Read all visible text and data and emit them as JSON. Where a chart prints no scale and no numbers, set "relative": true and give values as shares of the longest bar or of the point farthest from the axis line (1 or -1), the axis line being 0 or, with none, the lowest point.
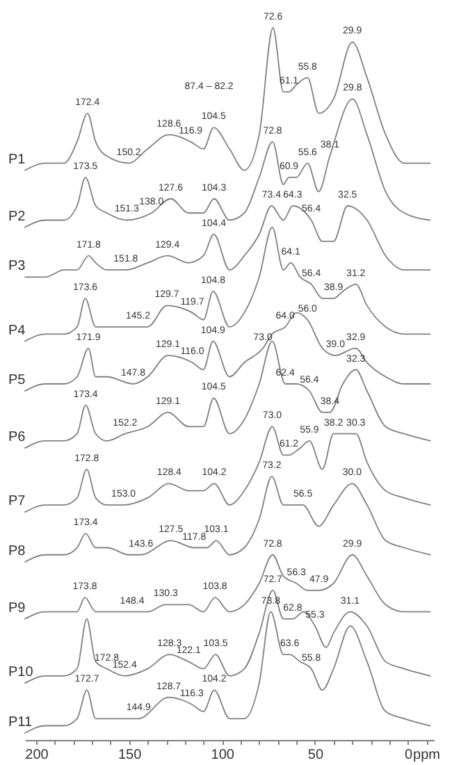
{
  "chart_data": {
    "type": "line",
    "relative": true,
    "xlabel": "ppm",
    "xlim": [
      206,
      -14
    ],
    "xticks": [
      200,
      {
        "value": 190,
        "label": null
      },
      {
        "value": 180,
        "label": null
      },
      {
        "value": 170,
        "label": null
      },
      {
        "value": 160,
        "label": null
      },
      150,
      {
        "value": 140,
        "label": null
      },
      {
        "value": 130,
        "label": null
      },
      {
        "value": 120,
        "label": null
      },
      {
        "value": 110,
        "label": null
      },
      100,
      {
        "value": 90,
        "label": null
      },
      {
        "value": 80,
        "label": null
      },
      {
        "value": 70,
        "label": null
      },
      {
        "value": 60,
        "label": null
      },
      50,
      {
        "value": 40,
        "label": null
      },
      {
        "value": 30,
        "label": null
      },
      {
        "value": 20,
        "label": null
      },
      {
        "value": 10,
        "label": null
      },
      0,
      {
        "value": -10,
        "label": null
      }
    ],
    "series": [
      {
        "name": "P1",
        "color": "#808080",
        "x": [
          206,
          195,
          185,
          178,
          172.4,
          168,
          162,
          150.2,
          140,
          128.6,
          116.9,
          110,
          104.5,
          96,
          88,
          80,
          72.6,
          67,
          64,
          60,
          54,
          48,
          40,
          29.9,
          22,
          12,
          2,
          -12
        ],
        "values": [
          0.8,
          0.81,
          0.81,
          0.84,
          0.88,
          0.84,
          0.82,
          0.81,
          0.83,
          0.85,
          0.84,
          0.83,
          0.86,
          0.83,
          0.8,
          0.85,
          1.0,
          0.91,
          0.91,
          0.92,
          0.93,
          0.88,
          0.9,
          0.98,
          0.93,
          0.85,
          0.81,
          0.81
        ]
      },
      {
        "name": "P2",
        "color": "#808080",
        "x": [
          206,
          195,
          185,
          178,
          173.5,
          168,
          162,
          151.3,
          138,
          127.6,
          118,
          110,
          104.3,
          96,
          88,
          80,
          72.8,
          67,
          64,
          60,
          54,
          48,
          42,
          29.8,
          22,
          12,
          2,
          -12
        ],
        "values": [
          0.72,
          0.73,
          0.73,
          0.75,
          0.79,
          0.75,
          0.74,
          0.73,
          0.74,
          0.76,
          0.74,
          0.74,
          0.76,
          0.73,
          0.74,
          0.79,
          0.84,
          0.78,
          0.79,
          0.79,
          0.81,
          0.77,
          0.82,
          0.9,
          0.85,
          0.77,
          0.74,
          0.73
        ]
      },
      {
        "name": "P3",
        "color": "#808080",
        "x": [
          206,
          195,
          185,
          178,
          171.8,
          168,
          162,
          151.8,
          140,
          129.4,
          118,
          110,
          104.4,
          96,
          88,
          80,
          73.4,
          67,
          62,
          52,
          46,
          40,
          32.5,
          22,
          12,
          2,
          -12
        ],
        "values": [
          0.65,
          0.65,
          0.66,
          0.66,
          0.68,
          0.67,
          0.66,
          0.66,
          0.67,
          0.68,
          0.67,
          0.68,
          0.71,
          0.66,
          0.68,
          0.71,
          0.75,
          0.73,
          0.75,
          0.73,
          0.7,
          0.7,
          0.75,
          0.73,
          0.68,
          0.66,
          0.66
        ]
      },
      {
        "name": "P4",
        "color": "#808080",
        "x": [
          206,
          195,
          185,
          178,
          173.6,
          168,
          162,
          145.2,
          140,
          129.7,
          116,
          110,
          104.8,
          96,
          88,
          80,
          73,
          67,
          63,
          58,
          52,
          46,
          40,
          35,
          28,
          22,
          12,
          2,
          -12
        ],
        "values": [
          0.56,
          0.57,
          0.57,
          0.58,
          0.62,
          0.58,
          0.58,
          0.58,
          0.58,
          0.61,
          0.6,
          0.59,
          0.63,
          0.58,
          0.6,
          0.65,
          0.72,
          0.66,
          0.67,
          0.65,
          0.64,
          0.62,
          0.62,
          0.63,
          0.64,
          0.61,
          0.58,
          0.57,
          0.57
        ]
      },
      {
        "name": "P5",
        "color": "#808080",
        "x": [
          206,
          195,
          185,
          178,
          171.9,
          168,
          162,
          147.8,
          140,
          129.1,
          116,
          110,
          104.9,
          96,
          88,
          78,
          73,
          66,
          60,
          54,
          46,
          39,
          28,
          22,
          12,
          2,
          -12
        ],
        "values": [
          0.49,
          0.5,
          0.5,
          0.51,
          0.55,
          0.51,
          0.51,
          0.5,
          0.51,
          0.54,
          0.53,
          0.52,
          0.56,
          0.51,
          0.53,
          0.55,
          0.57,
          0.58,
          0.6,
          0.59,
          0.55,
          0.54,
          0.55,
          0.53,
          0.51,
          0.5,
          0.5
        ]
      },
      {
        "name": "P6",
        "color": "#808080",
        "x": [
          206,
          195,
          185,
          178,
          173.4,
          168,
          162,
          152.2,
          140,
          129.1,
          118,
          110,
          104.5,
          96,
          88,
          80,
          73,
          66,
          60,
          53,
          46,
          42,
          35,
          28,
          22,
          12,
          2,
          -12
        ],
        "values": [
          0.41,
          0.42,
          0.42,
          0.43,
          0.47,
          0.43,
          0.42,
          0.43,
          0.44,
          0.46,
          0.44,
          0.44,
          0.48,
          0.43,
          0.45,
          0.5,
          0.56,
          0.5,
          0.5,
          0.49,
          0.46,
          0.46,
          0.5,
          0.52,
          0.49,
          0.44,
          0.43,
          0.42
        ]
      },
      {
        "name": "P7",
        "color": "#808080",
        "x": [
          206,
          195,
          185,
          178,
          172.8,
          168,
          162,
          153,
          140,
          128.4,
          118,
          110,
          104.2,
          96,
          88,
          80,
          73,
          67,
          64,
          58,
          53,
          46,
          40,
          34,
          28,
          22,
          12,
          2,
          -12
        ],
        "values": [
          0.32,
          0.33,
          0.33,
          0.34,
          0.38,
          0.34,
          0.33,
          0.33,
          0.34,
          0.36,
          0.35,
          0.35,
          0.36,
          0.33,
          0.35,
          0.39,
          0.44,
          0.4,
          0.4,
          0.41,
          0.42,
          0.38,
          0.43,
          0.43,
          0.43,
          0.39,
          0.35,
          0.34,
          0.33
        ]
      },
      {
        "name": "P8",
        "color": "#808080",
        "x": [
          206,
          195,
          185,
          178,
          173.4,
          168,
          162,
          150,
          143.6,
          127.5,
          115,
          108,
          103.1,
          96,
          88,
          80,
          73.2,
          67,
          62,
          56.5,
          48,
          40,
          30,
          22,
          12,
          2,
          -12
        ],
        "values": [
          0.25,
          0.26,
          0.26,
          0.27,
          0.29,
          0.27,
          0.27,
          0.26,
          0.26,
          0.28,
          0.27,
          0.27,
          0.28,
          0.26,
          0.27,
          0.31,
          0.37,
          0.33,
          0.33,
          0.33,
          0.3,
          0.33,
          0.36,
          0.33,
          0.28,
          0.27,
          0.26
        ]
      },
      {
        "name": "P9",
        "color": "#808080",
        "x": [
          206,
          195,
          185,
          178,
          173.8,
          168,
          162,
          148.4,
          140,
          130.3,
          118,
          110,
          103.8,
          96,
          88,
          80,
          72.8,
          67,
          60,
          54,
          47.9,
          40,
          29.9,
          22,
          12,
          2,
          -12
        ],
        "values": [
          0.17,
          0.18,
          0.18,
          0.18,
          0.2,
          0.18,
          0.18,
          0.18,
          0.18,
          0.19,
          0.19,
          0.18,
          0.2,
          0.18,
          0.19,
          0.22,
          0.26,
          0.23,
          0.22,
          0.21,
          0.21,
          0.22,
          0.26,
          0.23,
          0.19,
          0.18,
          0.18
        ]
      },
      {
        "name": "P10",
        "color": "#808080",
        "x": [
          206,
          195,
          185,
          178,
          172.8,
          168,
          162,
          152.4,
          140,
          128.3,
          118,
          110,
          103.5,
          96,
          88,
          80,
          72.7,
          67,
          62,
          56,
          50,
          44,
          40,
          31.1,
          22,
          12,
          2,
          -12
        ],
        "values": [
          0.08,
          0.09,
          0.09,
          0.1,
          0.17,
          0.11,
          0.1,
          0.09,
          0.1,
          0.12,
          0.11,
          0.1,
          0.12,
          0.09,
          0.1,
          0.15,
          0.21,
          0.17,
          0.17,
          0.18,
          0.16,
          0.13,
          0.15,
          0.18,
          0.16,
          0.11,
          0.1,
          0.09
        ]
      },
      {
        "name": "P11",
        "color": "#808080",
        "x": [
          206,
          195,
          185,
          178,
          172.7,
          168,
          162,
          150,
          144.9,
          128.7,
          116.3,
          110,
          104.2,
          96,
          88,
          80,
          73.8,
          67,
          63.6,
          58,
          52,
          46,
          40,
          31,
          22,
          12,
          2,
          -12
        ],
        "values": [
          0.01,
          0.02,
          0.02,
          0.03,
          0.07,
          0.03,
          0.03,
          0.03,
          0.03,
          0.06,
          0.05,
          0.04,
          0.07,
          0.03,
          0.03,
          0.08,
          0.18,
          0.12,
          0.12,
          0.11,
          0.1,
          0.07,
          0.1,
          0.16,
          0.11,
          0.04,
          0.03,
          0.02
        ]
      }
    ],
    "annotations": [
      "87.4 – 82.2",
      {
        "text": "172.4",
        "x": 172.4,
        "y": 0.88
      },
      {
        "text": "150.2",
        "x": 150.2,
        "y": 0.81
      },
      {
        "text": "128.6",
        "x": 128.6,
        "y": 0.85
      },
      {
        "text": "116.9",
        "x": 116.9,
        "y": 0.84
      },
      {
        "text": "104.5",
        "x": 104.5,
        "y": 0.86
      },
      {
        "text": "72.6",
        "x": 72.6,
        "y": 1.0
      },
      {
        "text": "61.1",
        "x": 64,
        "y": 0.91
      },
      {
        "text": "55.8",
        "x": 54,
        "y": 0.93
      },
      {
        "text": "29.9",
        "x": 29.9,
        "y": 0.98
      },
      {
        "text": "173.5",
        "x": 173.5,
        "y": 0.79
      },
      {
        "text": "151.3",
        "x": 151.3,
        "y": 0.73
      },
      {
        "text": "138.0",
        "x": 138,
        "y": 0.74
      },
      {
        "text": "127.6",
        "x": 127.6,
        "y": 0.76
      },
      {
        "text": "104.3",
        "x": 104.3,
        "y": 0.76
      },
      {
        "text": "72.8",
        "x": 72.8,
        "y": 0.84
      },
      {
        "text": "60.9",
        "x": 64,
        "y": 0.79
      },
      {
        "text": "55.6",
        "x": 54,
        "y": 0.81
      },
      {
        "text": "38.1",
        "x": 42,
        "y": 0.82
      },
      {
        "text": "29.8",
        "x": 29.8,
        "y": 0.9
      },
      {
        "text": "171.8",
        "x": 171.8,
        "y": 0.68
      },
      {
        "text": "151.8",
        "x": 151.8,
        "y": 0.66
      },
      {
        "text": "129.4",
        "x": 129.4,
        "y": 0.68
      },
      {
        "text": "104.4",
        "x": 104.4,
        "y": 0.71
      },
      {
        "text": "73.4",
        "x": 73.4,
        "y": 0.75
      },
      {
        "text": "64.3",
        "x": 62,
        "y": 0.75
      },
      {
        "text": "56.4",
        "x": 52,
        "y": 0.73
      },
      {
        "text": "32.5",
        "x": 32.5,
        "y": 0.75
      },
      {
        "text": "173.6",
        "x": 173.6,
        "y": 0.62
      },
      {
        "text": "145.2",
        "x": 145.2,
        "y": 0.58
      },
      {
        "text": "129.7",
        "x": 129.7,
        "y": 0.61
      },
      {
        "text": "119.7",
        "x": 116,
        "y": 0.6
      },
      {
        "text": "104.8",
        "x": 104.8,
        "y": 0.63
      },
      {
        "text": "64.1",
        "x": 63,
        "y": 0.67
      },
      {
        "text": "56.4",
        "x": 52,
        "y": 0.64
      },
      {
        "text": "38.9",
        "x": 40,
        "y": 0.62
      },
      {
        "text": "31.2",
        "x": 28,
        "y": 0.64
      },
      {
        "text": "171.9",
        "x": 171.9,
        "y": 0.55
      },
      {
        "text": "147.8",
        "x": 147.8,
        "y": 0.5
      },
      {
        "text": "129.1",
        "x": 129.1,
        "y": 0.54
      },
      {
        "text": "116.0",
        "x": 116,
        "y": 0.53
      },
      {
        "text": "104.9",
        "x": 104.9,
        "y": 0.56
      },
      {
        "text": "73.0",
        "x": 78,
        "y": 0.55
      },
      {
        "text": "64.0",
        "x": 66,
        "y": 0.58
      },
      {
        "text": "56.0",
        "x": 54,
        "y": 0.59
      },
      {
        "text": "39.0",
        "x": 39,
        "y": 0.54
      },
      {
        "text": "32.9",
        "x": 28,
        "y": 0.55
      },
      {
        "text": "173.4",
        "x": 173.4,
        "y": 0.47
      },
      {
        "text": "152.2",
        "x": 152.2,
        "y": 0.43
      },
      {
        "text": "129.1",
        "x": 129.1,
        "y": 0.46
      },
      {
        "text": "104.5",
        "x": 104.5,
        "y": 0.48
      },
      {
        "text": "62.4",
        "x": 66,
        "y": 0.5
      },
      {
        "text": "56.4",
        "x": 53,
        "y": 0.49
      },
      {
        "text": "38.4",
        "x": 42,
        "y": 0.46
      },
      {
        "text": "32.3",
        "x": 28,
        "y": 0.52
      },
      {
        "text": "172.8",
        "x": 172.8,
        "y": 0.38
      },
      {
        "text": "153.0",
        "x": 153,
        "y": 0.33
      },
      {
        "text": "128.4",
        "x": 128.4,
        "y": 0.36
      },
      {
        "text": "104.2",
        "x": 104.2,
        "y": 0.36
      },
      {
        "text": "73.0",
        "x": 73,
        "y": 0.44
      },
      {
        "text": "61.2",
        "x": 64,
        "y": 0.4
      },
      {
        "text": "55.9",
        "x": 53,
        "y": 0.42
      },
      {
        "text": "38.2",
        "x": 40,
        "y": 0.43
      },
      {
        "text": "30.3",
        "x": 28,
        "y": 0.43
      },
      {
        "text": "173.4",
        "x": 173.4,
        "y": 0.29
      },
      {
        "text": "143.6",
        "x": 143.6,
        "y": 0.26
      },
      {
        "text": "127.5",
        "x": 127.5,
        "y": 0.28
      },
      {
        "text": "117.8",
        "x": 115,
        "y": 0.27
      },
      {
        "text": "103.1",
        "x": 103.1,
        "y": 0.28
      },
      {
        "text": "73.2",
        "x": 73.2,
        "y": 0.37
      },
      {
        "text": "56.5",
        "x": 56.5,
        "y": 0.33
      },
      {
        "text": "30.0",
        "x": 30,
        "y": 0.36
      },
      {
        "text": "173.8",
        "x": 173.8,
        "y": 0.2
      },
      {
        "text": "148.4",
        "x": 148.4,
        "y": 0.18
      },
      {
        "text": "130.3",
        "x": 130.3,
        "y": 0.19
      },
      {
        "text": "103.8",
        "x": 103.8,
        "y": 0.2
      },
      {
        "text": "72.8",
        "x": 72.8,
        "y": 0.26
      },
      {
        "text": "56.3",
        "x": 60,
        "y": 0.22
      },
      {
        "text": "47.9",
        "x": 47.9,
        "y": 0.21
      },
      {
        "text": "29.9",
        "x": 29.9,
        "y": 0.26
      },
      {
        "text": "172.8",
        "x": 162,
        "y": 0.1
      },
      {
        "text": "152.4",
        "x": 152.4,
        "y": 0.09
      },
      {
        "text": "128.3",
        "x": 128.3,
        "y": 0.12
      },
      {
        "text": "122.1",
        "x": 118,
        "y": 0.11
      },
      {
        "text": "103.5",
        "x": 103.5,
        "y": 0.12
      },
      {
        "text": "72.7",
        "x": 72.7,
        "y": 0.21
      },
      {
        "text": "62.8",
        "x": 62,
        "y": 0.17
      },
      {
        "text": "55.3",
        "x": 50,
        "y": 0.16
      },
      {
        "text": "31.1",
        "x": 31.1,
        "y": 0.18
      },
      {
        "text": "172.7",
        "x": 172.7,
        "y": 0.07
      },
      {
        "text": "144.9",
        "x": 144.9,
        "y": 0.03
      },
      {
        "text": "128.7",
        "x": 128.7,
        "y": 0.06
      },
      {
        "text": "116.3",
        "x": 116.3,
        "y": 0.05
      },
      {
        "text": "104.2",
        "x": 104.2,
        "y": 0.07
      },
      {
        "text": "73.8",
        "x": 73.8,
        "y": 0.18
      },
      {
        "text": "63.6",
        "x": 63.6,
        "y": 0.12
      },
      {
        "text": "55.8",
        "x": 52,
        "y": 0.1
      }
    ]
  }
}
